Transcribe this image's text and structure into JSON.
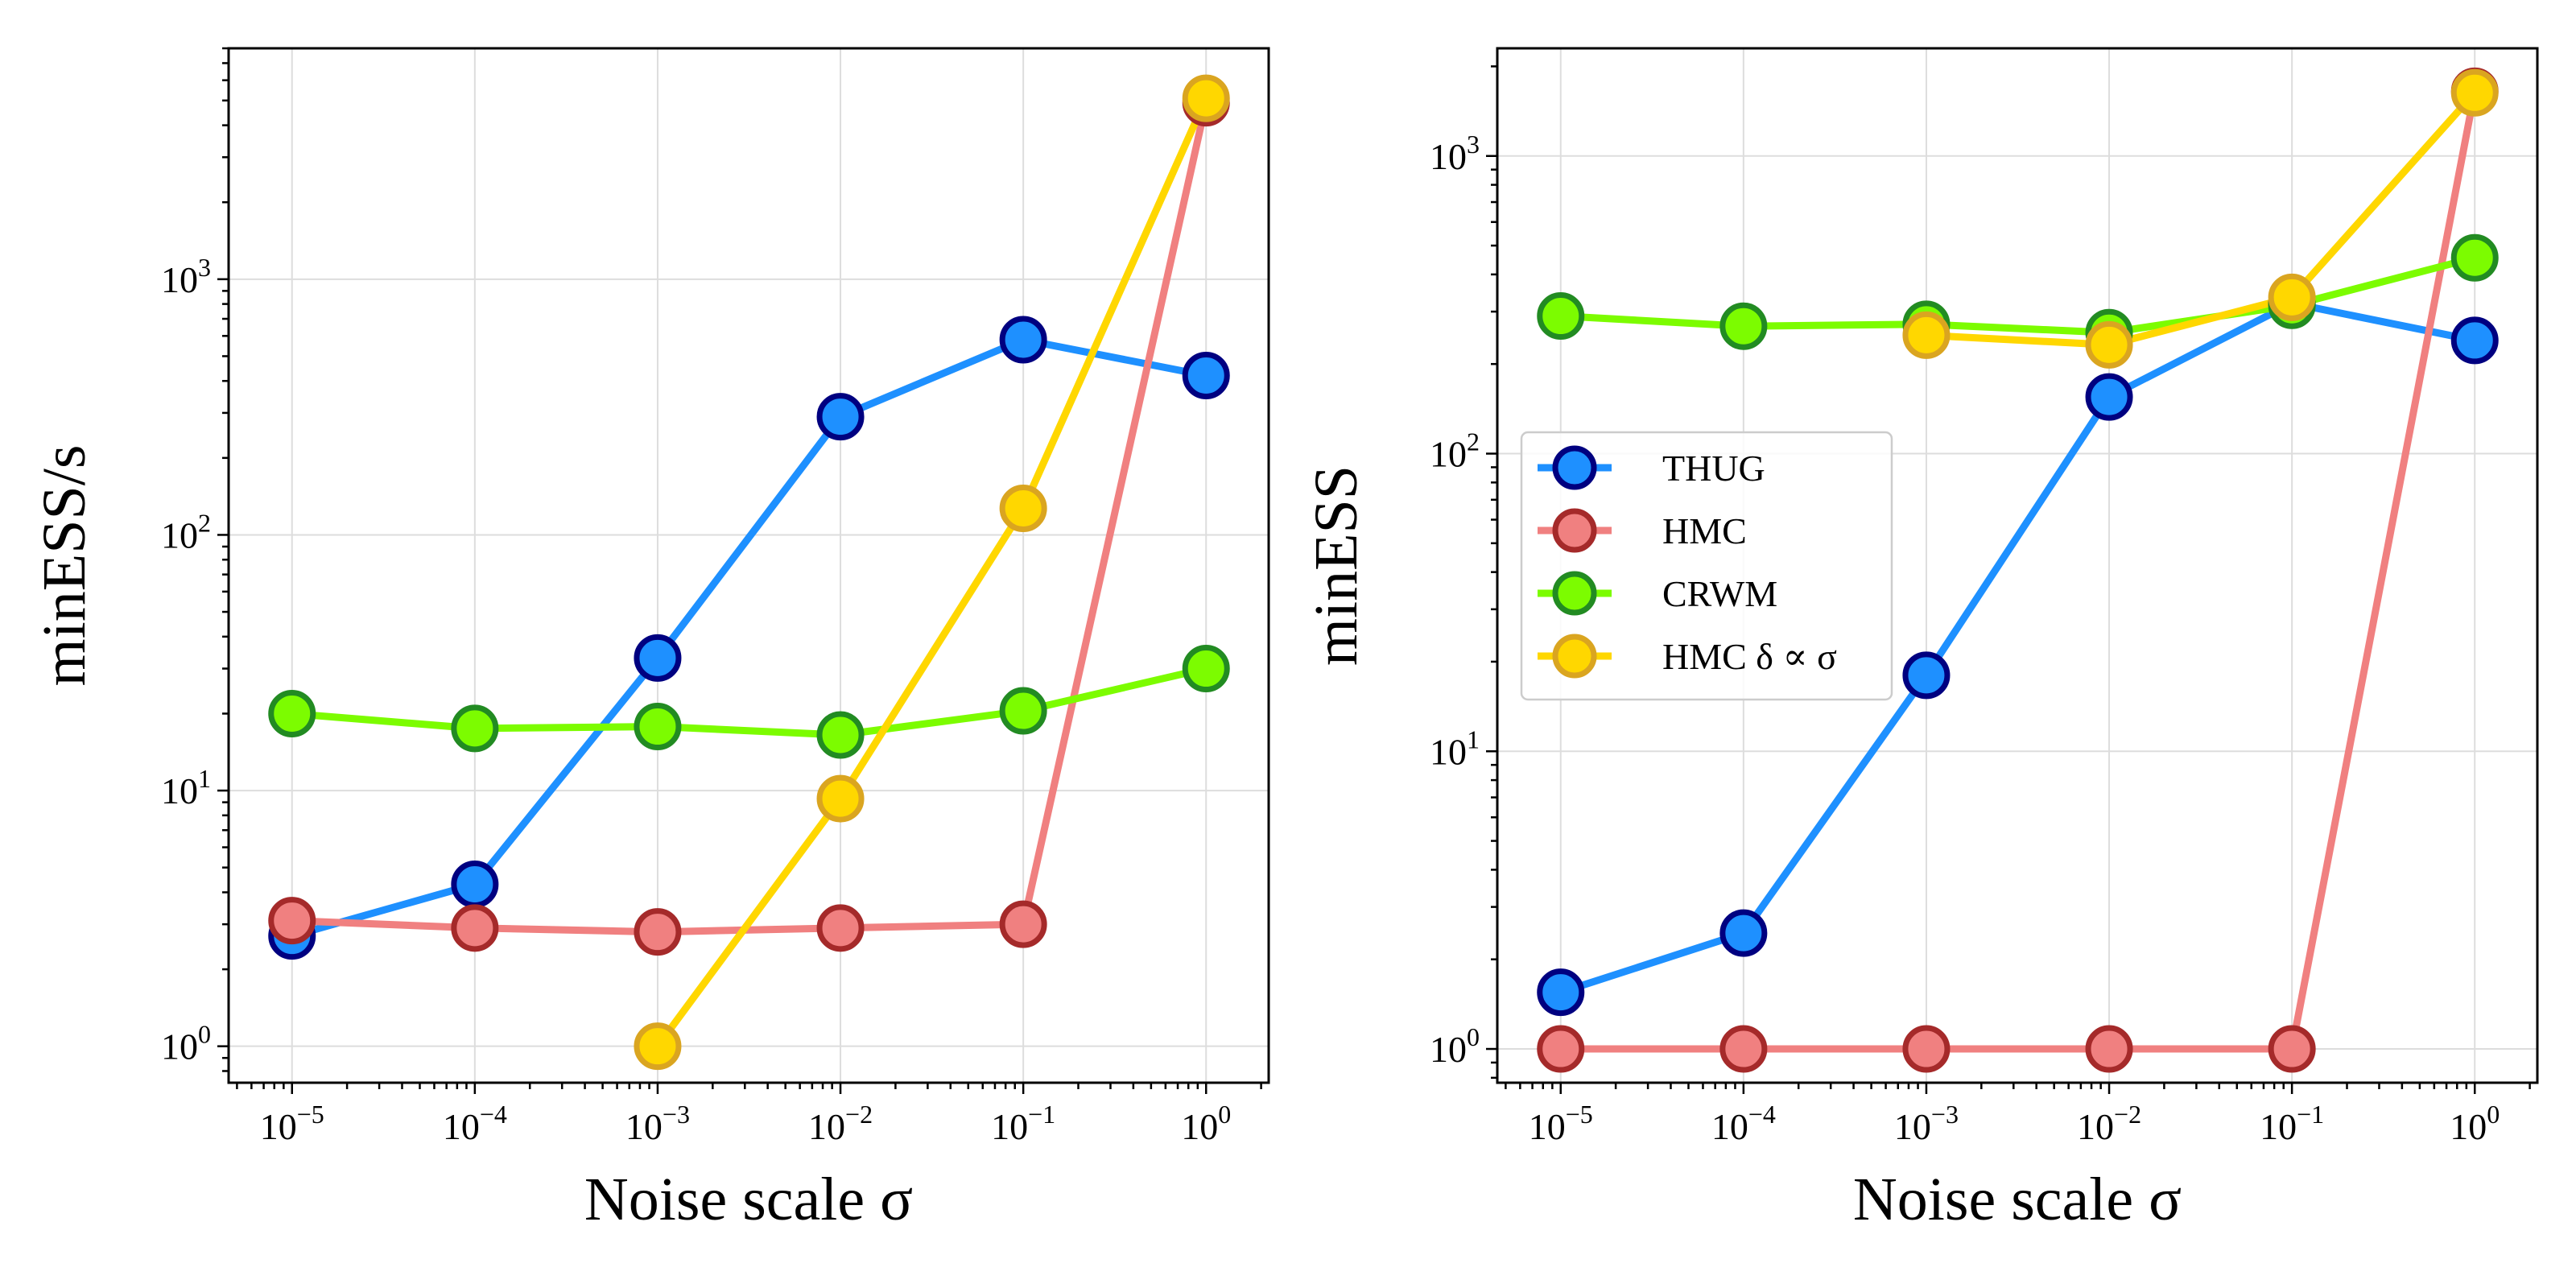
{
  "colors": {
    "THUG": {
      "line": "#1E90FF",
      "face": "#1E90FF",
      "edge": "#000080"
    },
    "HMC": {
      "line": "#F08080",
      "face": "#F08080",
      "edge": "#A52A2A"
    },
    "CRWM": {
      "line": "#7CFC00",
      "face": "#7CFC00",
      "edge": "#228B22"
    },
    "HMC_delta": {
      "line": "#FFD700",
      "face": "#FFD700",
      "edge": "#DAA520"
    },
    "grid": "#dddddd"
  },
  "chart_data": [
    {
      "type": "line",
      "title": "",
      "xlabel": "Noise scale σ",
      "ylabel": "minESS/s",
      "xscale": "log",
      "yscale": "log",
      "xlim": [
        4.5e-06,
        2.2
      ],
      "ylim": [
        0.72,
        8000
      ],
      "grid": true,
      "legend": "none",
      "x_tick_labels": [
        {
          "base": "10",
          "exp": "−5"
        },
        {
          "base": "10",
          "exp": "−4"
        },
        {
          "base": "10",
          "exp": "−3"
        },
        {
          "base": "10",
          "exp": "−2"
        },
        {
          "base": "10",
          "exp": "−1"
        },
        {
          "base": "10",
          "exp": "0"
        }
      ],
      "y_tick_labels": [
        {
          "base": "10",
          "exp": "0"
        },
        {
          "base": "10",
          "exp": "1"
        },
        {
          "base": "10",
          "exp": "2"
        },
        {
          "base": "10",
          "exp": "3"
        }
      ],
      "series": [
        {
          "key": "THUG",
          "x": [
            1e-05,
            0.0001,
            0.001,
            0.01,
            0.1,
            1
          ],
          "values": [
            2.7,
            4.3,
            33,
            290,
            580,
            420
          ]
        },
        {
          "key": "HMC",
          "x": [
            1e-05,
            0.0001,
            0.001,
            0.01,
            0.1,
            1
          ],
          "values": [
            3.1,
            2.9,
            2.8,
            2.9,
            3.0,
            4900
          ]
        },
        {
          "key": "CRWM",
          "x": [
            1e-05,
            0.0001,
            0.001,
            0.01,
            0.1,
            1
          ],
          "values": [
            20,
            17.5,
            17.8,
            16.5,
            20.5,
            30
          ]
        },
        {
          "key": "HMC_delta",
          "x": [
            0.001,
            0.01,
            0.1,
            1
          ],
          "values": [
            1.0,
            9.3,
            127,
            5100
          ]
        }
      ]
    },
    {
      "type": "line",
      "title": "",
      "xlabel": "Noise scale σ",
      "ylabel": "minESS",
      "xscale": "log",
      "yscale": "log",
      "xlim": [
        4.5e-06,
        2.2
      ],
      "ylim": [
        0.77,
        2300
      ],
      "grid": true,
      "legend": "center-left",
      "x_tick_labels": [
        {
          "base": "10",
          "exp": "−5"
        },
        {
          "base": "10",
          "exp": "−4"
        },
        {
          "base": "10",
          "exp": "−3"
        },
        {
          "base": "10",
          "exp": "−2"
        },
        {
          "base": "10",
          "exp": "−1"
        },
        {
          "base": "10",
          "exp": "0"
        }
      ],
      "y_tick_labels": [
        {
          "base": "10",
          "exp": "0"
        },
        {
          "base": "10",
          "exp": "1"
        },
        {
          "base": "10",
          "exp": "2"
        },
        {
          "base": "10",
          "exp": "3"
        }
      ],
      "legend_entries": [
        {
          "key": "THUG",
          "label": "THUG"
        },
        {
          "key": "HMC",
          "label": "HMC"
        },
        {
          "key": "CRWM",
          "label": "CRWM"
        },
        {
          "key": "HMC_delta",
          "label": "HMC δ ∝ σ"
        }
      ],
      "series": [
        {
          "key": "THUG",
          "x": [
            1e-05,
            0.0001,
            0.001,
            0.01,
            0.1,
            1
          ],
          "values": [
            1.55,
            2.45,
            18,
            155,
            320,
            240
          ]
        },
        {
          "key": "HMC",
          "x": [
            1e-05,
            0.0001,
            0.001,
            0.01,
            0.1,
            1
          ],
          "values": [
            1,
            1,
            1,
            1,
            1,
            1650
          ]
        },
        {
          "key": "CRWM",
          "x": [
            1e-05,
            0.0001,
            0.001,
            0.01,
            0.1,
            1
          ],
          "values": [
            290,
            268,
            272,
            255,
            315,
            455
          ]
        },
        {
          "key": "HMC_delta",
          "x": [
            0.001,
            0.01,
            0.1,
            1
          ],
          "values": [
            250,
            232,
            335,
            1630
          ]
        }
      ]
    }
  ]
}
